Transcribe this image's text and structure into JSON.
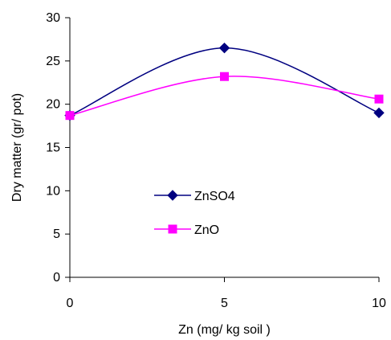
{
  "chart_data": {
    "type": "line",
    "xlabel": "Zn (mg/ kg soil )",
    "ylabel": "Dry matter (gr/ pot)",
    "x_ticks": [
      0,
      5,
      10
    ],
    "y_ticks": [
      0,
      5,
      10,
      15,
      20,
      25,
      30
    ],
    "xlim": [
      0,
      10
    ],
    "ylim": [
      0,
      30
    ],
    "grid": false,
    "legend_position": "center-left",
    "series": [
      {
        "name": "ZnSO4",
        "x": [
          0,
          5,
          10
        ],
        "y": [
          18.7,
          26.5,
          19.0
        ],
        "color": "#000080",
        "marker": "diamond",
        "smooth": true
      },
      {
        "name": "ZnO",
        "x": [
          0,
          5,
          10
        ],
        "y": [
          18.7,
          23.2,
          20.6
        ],
        "color": "#FF00FF",
        "marker": "square",
        "smooth": true
      }
    ]
  }
}
